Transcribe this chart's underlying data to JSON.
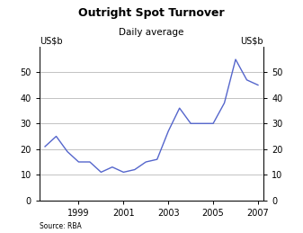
{
  "title": "Outright Spot Turnover",
  "subtitle": "Daily average",
  "ylabel_left": "US$b",
  "ylabel_right": "US$b",
  "source": "Source: RBA",
  "line_color": "#5566cc",
  "line_width": 1.0,
  "x": [
    1997.5,
    1998.0,
    1998.5,
    1999.0,
    1999.5,
    2000.0,
    2000.5,
    2001.0,
    2001.5,
    2002.0,
    2002.5,
    2003.0,
    2003.5,
    2004.0,
    2004.5,
    2005.0,
    2005.5,
    2006.0,
    2006.5,
    2007.0
  ],
  "y": [
    21,
    25,
    19,
    15,
    15,
    11,
    13,
    11,
    12,
    15,
    16,
    27,
    36,
    30,
    30,
    30,
    38,
    55,
    47,
    45
  ],
  "xlim": [
    1997.25,
    2007.25
  ],
  "ylim": [
    0,
    60
  ],
  "yticks": [
    0,
    10,
    20,
    30,
    40,
    50
  ],
  "xticks": [
    1999,
    2001,
    2003,
    2005,
    2007
  ],
  "background_color": "#ffffff",
  "grid_color": "#aaaaaa",
  "title_fontsize": 9,
  "subtitle_fontsize": 7.5,
  "tick_fontsize": 7,
  "label_fontsize": 7
}
